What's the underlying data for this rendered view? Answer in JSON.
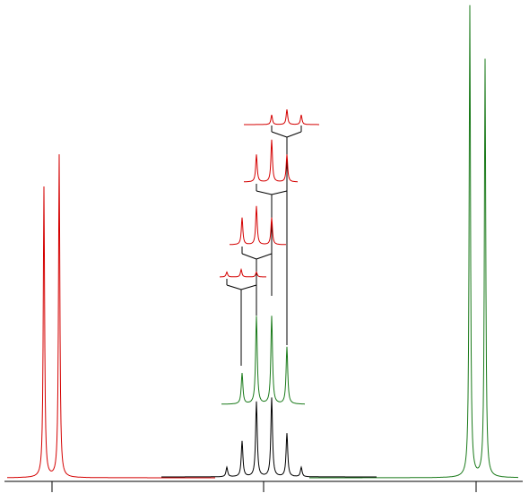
{
  "diagram": {
    "kind": "nmr-multiplet-splitting-tree",
    "axis": {
      "ticks": 3,
      "tick_labels": []
    },
    "colors": {
      "red": "#d40000",
      "green": "#1a7a1a",
      "black": "#000000",
      "axis": "#000000"
    },
    "peaks": {
      "left_doublet": {
        "color": "red",
        "heights": [
          1.0,
          1.0
        ]
      },
      "right_doublet": {
        "color": "green",
        "heights": [
          1.0,
          1.0
        ]
      },
      "central_multiplet": {
        "color": "black",
        "relative_heights": [
          0.12,
          0.45,
          0.95,
          1.0,
          0.55,
          0.12
        ]
      },
      "green_subspectrum": {
        "color": "green",
        "relative_heights": [
          0.35,
          1.0,
          1.0,
          0.65
        ]
      },
      "red_subspectra": [
        {
          "color": "red",
          "relative_heights": [
            0.4,
            0.6,
            0.4
          ]
        },
        {
          "color": "red",
          "relative_heights": [
            0.7,
            1.0,
            0.7
          ]
        },
        {
          "color": "red",
          "relative_heights": [
            0.65,
            1.0,
            0.65
          ]
        },
        {
          "color": "red",
          "relative_heights": [
            0.45,
            0.7,
            0.45
          ]
        }
      ]
    }
  }
}
